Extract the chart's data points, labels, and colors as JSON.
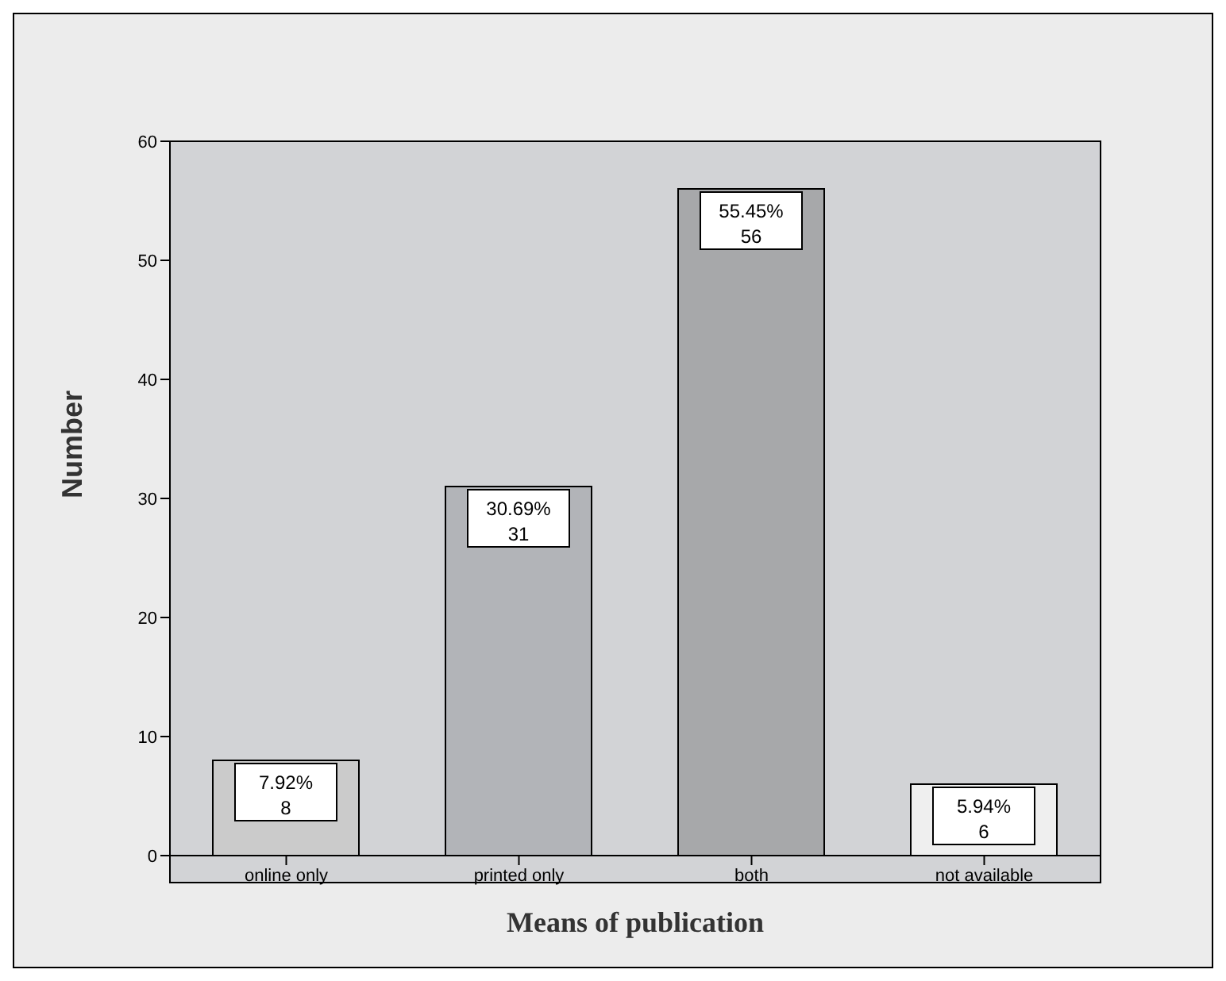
{
  "chart_data": {
    "type": "bar",
    "xlabel": "Means of publication",
    "ylabel": "Number",
    "categories": [
      "online only",
      "printed only",
      "both",
      "not available"
    ],
    "values": [
      8,
      31,
      56,
      6
    ],
    "colors": [
      "#cbcbcb",
      "#b2b4b8",
      "#a7a8aa",
      "#efefef"
    ],
    "value_labels": [
      "7.92%\n8",
      "30.69%\n31",
      "55.45%\n56",
      "5.94%\n6"
    ],
    "ylim": [
      0,
      60
    ],
    "yticks": [
      0,
      10,
      20,
      30,
      40,
      50,
      60
    ]
  }
}
